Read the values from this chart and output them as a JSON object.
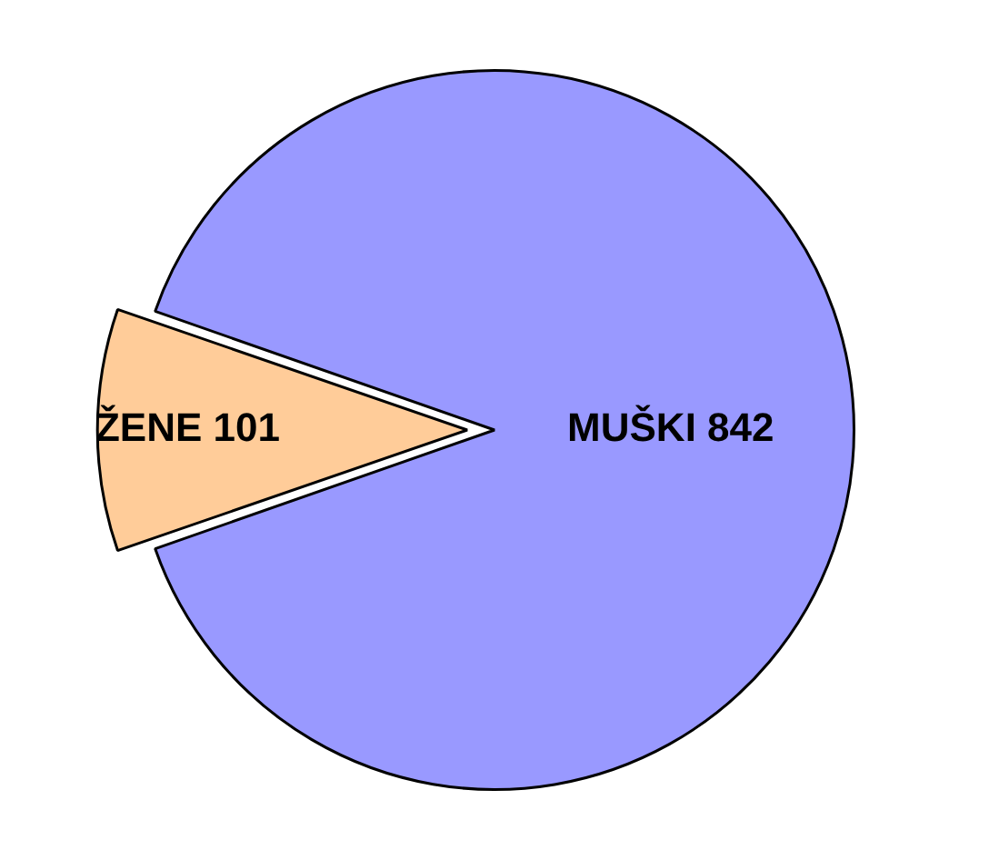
{
  "chart_data": {
    "type": "pie",
    "categories": [
      "MUŠKI",
      "ŽENE"
    ],
    "values": [
      842,
      101
    ],
    "colors": [
      "#9999ff",
      "#ffcc99"
    ],
    "data_labels": true
  }
}
